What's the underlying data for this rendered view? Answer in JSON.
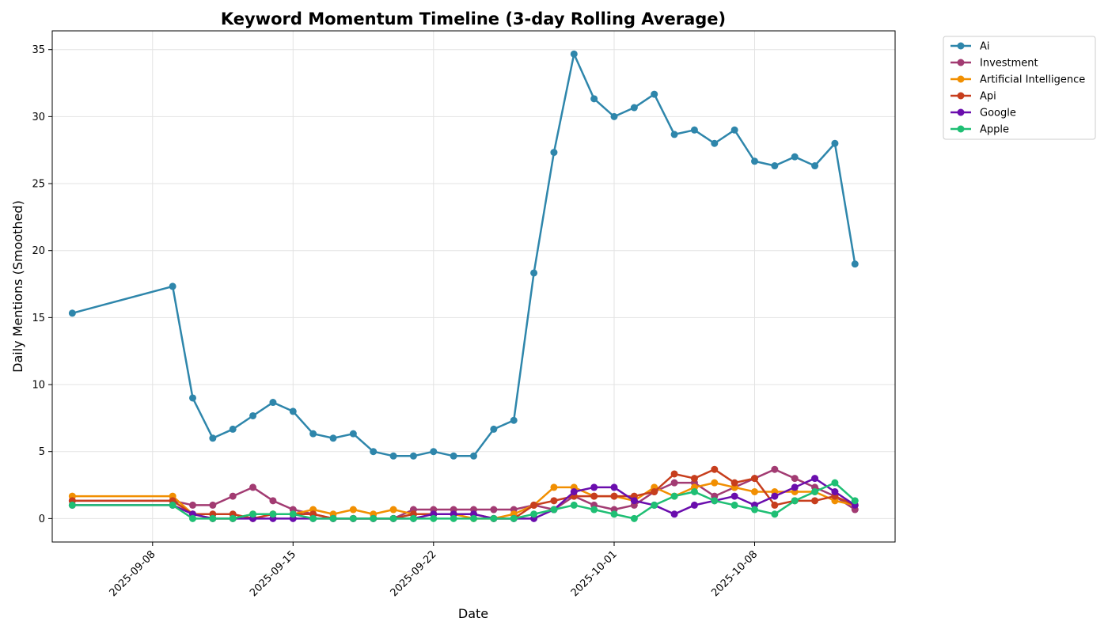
{
  "chart_data": {
    "type": "line",
    "title": "Keyword Momentum Timeline (3-day Rolling Average)",
    "xlabel": "Date",
    "ylabel": "Daily Mentions (Smoothed)",
    "ylim": [
      -1.75,
      36.4
    ],
    "xlim": [
      "2025-09-03",
      "2025-10-15"
    ],
    "x_ticks": [
      "2025-09-08",
      "2025-09-15",
      "2025-09-22",
      "2025-10-01",
      "2025-10-08"
    ],
    "y_ticks": [
      0,
      5,
      10,
      15,
      20,
      25,
      30,
      35
    ],
    "grid": true,
    "legend_position": "outside-top-right",
    "x": [
      "2025-09-04",
      "2025-09-09",
      "2025-09-10",
      "2025-09-11",
      "2025-09-12",
      "2025-09-13",
      "2025-09-14",
      "2025-09-15",
      "2025-09-16",
      "2025-09-17",
      "2025-09-18",
      "2025-09-19",
      "2025-09-20",
      "2025-09-21",
      "2025-09-22",
      "2025-09-23",
      "2025-09-24",
      "2025-09-25",
      "2025-09-26",
      "2025-09-27",
      "2025-09-28",
      "2025-09-29",
      "2025-09-30",
      "2025-10-01",
      "2025-10-02",
      "2025-10-03",
      "2025-10-04",
      "2025-10-05",
      "2025-10-06",
      "2025-10-07",
      "2025-10-08",
      "2025-10-09",
      "2025-10-10",
      "2025-10-11",
      "2025-10-12",
      "2025-10-13"
    ],
    "series": [
      {
        "name": "Ai",
        "color": "#2e86ab",
        "values": [
          15.33,
          17.33,
          9.0,
          6.0,
          6.67,
          7.67,
          8.67,
          8.0,
          6.33,
          6.0,
          6.33,
          5.0,
          4.67,
          4.67,
          5.0,
          4.67,
          4.67,
          6.67,
          7.33,
          18.33,
          27.33,
          34.67,
          31.33,
          30.0,
          30.67,
          31.67,
          28.67,
          29.0,
          28.0,
          29.0,
          26.67,
          26.33,
          27.0,
          26.33,
          28.0,
          19.0
        ]
      },
      {
        "name": "Investment",
        "color": "#a23b72",
        "values": [
          1.33,
          1.33,
          1.0,
          1.0,
          1.67,
          2.33,
          1.33,
          0.67,
          0.33,
          0.0,
          0.0,
          0.0,
          0.0,
          0.67,
          0.67,
          0.67,
          0.67,
          0.67,
          0.67,
          1.0,
          0.67,
          1.67,
          1.0,
          0.67,
          1.0,
          2.0,
          2.67,
          2.67,
          1.67,
          2.33,
          3.0,
          3.67,
          3.0,
          2.33,
          1.67,
          0.67
        ]
      },
      {
        "name": "Artificial Intelligence",
        "color": "#f18f01",
        "values": [
          1.67,
          1.67,
          0.33,
          0.0,
          0.0,
          0.33,
          0.33,
          0.33,
          0.67,
          0.33,
          0.67,
          0.33,
          0.67,
          0.33,
          0.33,
          0.33,
          0.0,
          0.0,
          0.33,
          1.0,
          2.33,
          2.33,
          1.67,
          1.67,
          1.33,
          2.33,
          1.67,
          2.33,
          2.67,
          2.33,
          2.0,
          2.0,
          2.0,
          2.0,
          1.33,
          1.0
        ]
      },
      {
        "name": "Api",
        "color": "#c73e1d",
        "values": [
          1.33,
          1.33,
          0.33,
          0.33,
          0.33,
          0.0,
          0.33,
          0.33,
          0.33,
          0.0,
          0.0,
          0.0,
          0.0,
          0.33,
          0.33,
          0.33,
          0.33,
          0.0,
          0.0,
          1.0,
          1.33,
          1.67,
          1.67,
          1.67,
          1.67,
          2.0,
          3.33,
          3.0,
          3.67,
          2.67,
          3.0,
          1.0,
          1.33,
          1.33,
          1.67,
          1.0
        ]
      },
      {
        "name": "Google",
        "color": "#6a0dad",
        "values": [
          1.0,
          1.0,
          0.33,
          0.0,
          0.0,
          0.0,
          0.0,
          0.0,
          0.0,
          0.0,
          0.0,
          0.0,
          0.0,
          0.0,
          0.33,
          0.33,
          0.33,
          0.0,
          0.0,
          0.0,
          0.67,
          2.0,
          2.33,
          2.33,
          1.33,
          1.0,
          0.33,
          1.0,
          1.33,
          1.67,
          1.0,
          1.67,
          2.33,
          3.0,
          2.0,
          1.0
        ]
      },
      {
        "name": "Apple",
        "color": "#1fbf74",
        "values": [
          1.0,
          1.0,
          0.0,
          0.0,
          0.0,
          0.33,
          0.33,
          0.33,
          0.0,
          0.0,
          0.0,
          0.0,
          0.0,
          0.0,
          0.0,
          0.0,
          0.0,
          0.0,
          0.0,
          0.33,
          0.67,
          1.0,
          0.67,
          0.33,
          0.0,
          1.0,
          1.67,
          2.0,
          1.33,
          1.0,
          0.67,
          0.33,
          1.33,
          2.0,
          2.67,
          1.33
        ]
      }
    ]
  }
}
